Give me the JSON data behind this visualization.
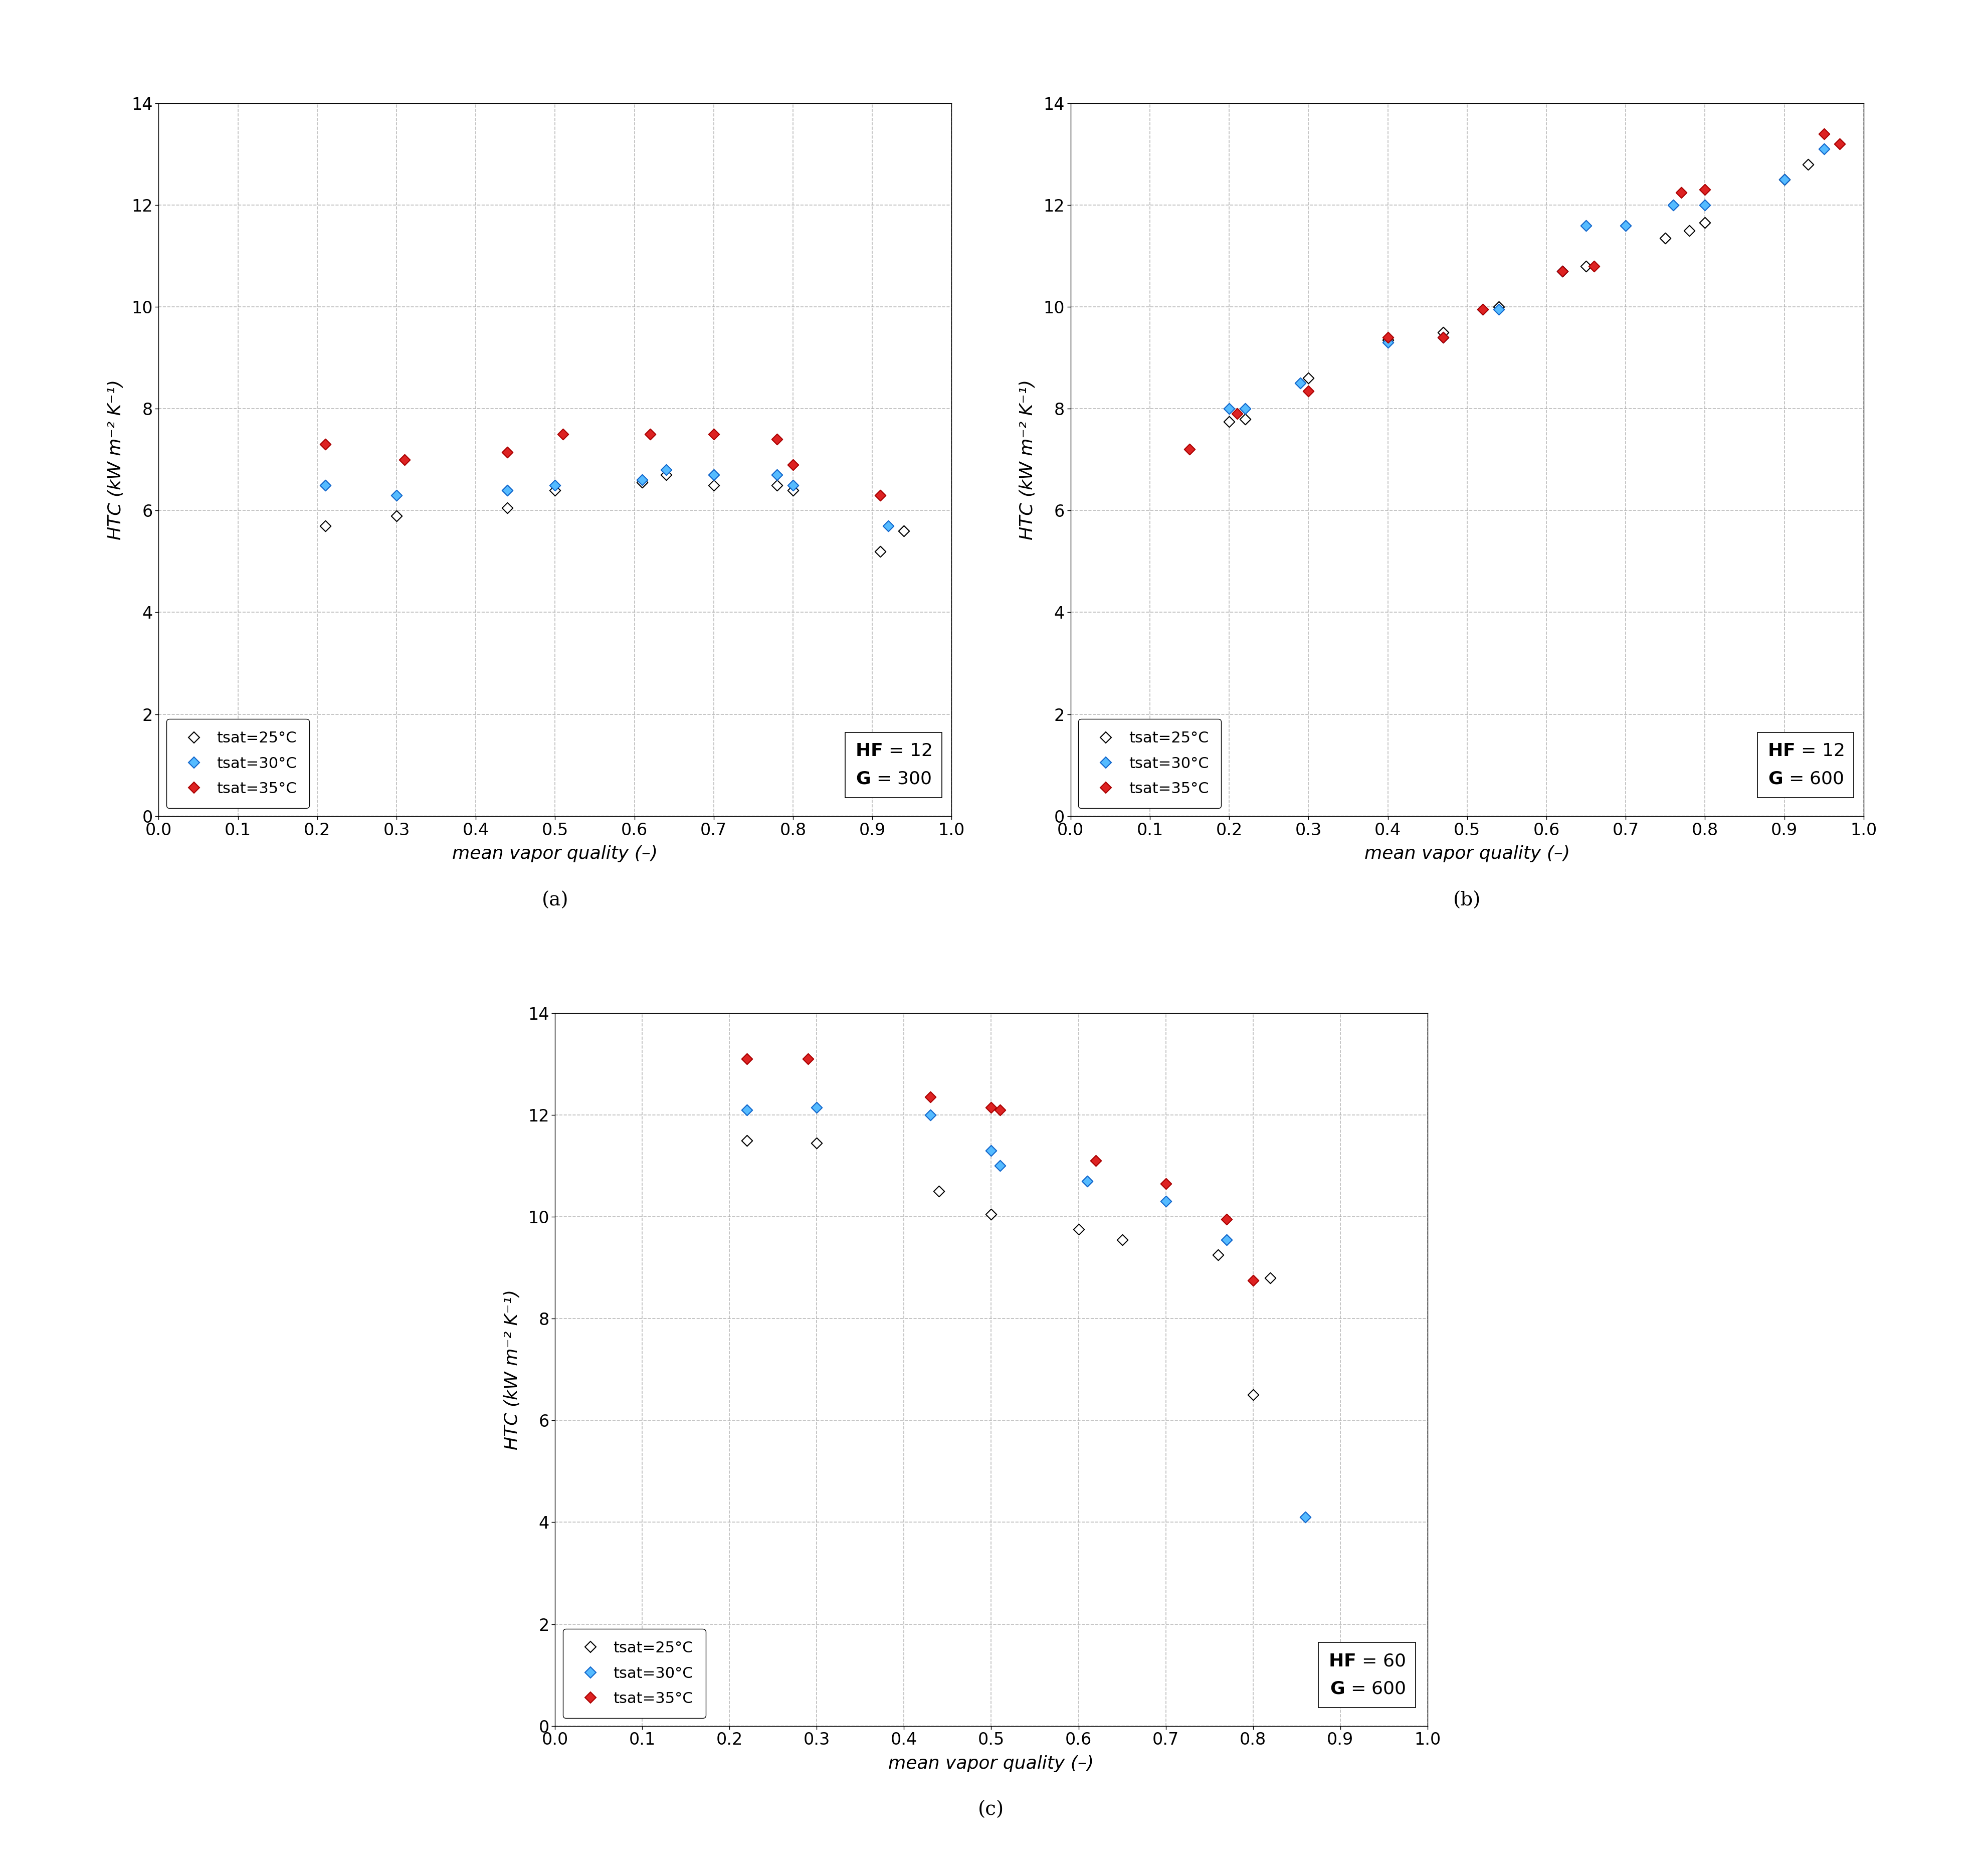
{
  "panel_a": {
    "annotation": "HF = 12\nG = 300",
    "white": {
      "x": [
        0.21,
        0.3,
        0.44,
        0.5,
        0.61,
        0.64,
        0.7,
        0.78,
        0.8,
        0.91,
        0.94
      ],
      "y": [
        5.7,
        5.9,
        6.05,
        6.4,
        6.55,
        6.7,
        6.5,
        6.5,
        6.4,
        5.2,
        5.6
      ]
    },
    "blue": {
      "x": [
        0.21,
        0.3,
        0.44,
        0.5,
        0.61,
        0.64,
        0.7,
        0.78,
        0.8,
        0.92
      ],
      "y": [
        6.5,
        6.3,
        6.4,
        6.5,
        6.6,
        6.8,
        6.7,
        6.7,
        6.5,
        5.7
      ]
    },
    "red": {
      "x": [
        0.21,
        0.31,
        0.44,
        0.51,
        0.62,
        0.7,
        0.78,
        0.8,
        0.91
      ],
      "y": [
        7.3,
        7.0,
        7.15,
        7.5,
        7.5,
        7.5,
        7.4,
        6.9,
        6.3
      ]
    }
  },
  "panel_b": {
    "annotation": "HF = 12\nG = 600",
    "white": {
      "x": [
        0.2,
        0.22,
        0.3,
        0.4,
        0.47,
        0.52,
        0.54,
        0.62,
        0.65,
        0.75,
        0.78,
        0.8,
        0.9,
        0.93
      ],
      "y": [
        7.75,
        7.8,
        8.6,
        9.35,
        9.5,
        9.95,
        10.0,
        10.7,
        10.8,
        11.35,
        11.5,
        11.65,
        12.5,
        12.8
      ]
    },
    "blue": {
      "x": [
        0.2,
        0.22,
        0.29,
        0.4,
        0.47,
        0.52,
        0.54,
        0.62,
        0.65,
        0.7,
        0.76,
        0.8,
        0.9,
        0.95
      ],
      "y": [
        8.0,
        8.0,
        8.5,
        9.3,
        9.4,
        9.95,
        9.95,
        10.7,
        11.6,
        11.6,
        12.0,
        12.0,
        12.5,
        13.1
      ]
    },
    "red": {
      "x": [
        0.15,
        0.21,
        0.3,
        0.4,
        0.47,
        0.52,
        0.62,
        0.66,
        0.77,
        0.8,
        0.95,
        0.97
      ],
      "y": [
        7.2,
        7.9,
        8.35,
        9.4,
        9.4,
        9.95,
        10.7,
        10.8,
        12.25,
        12.3,
        13.4,
        13.2
      ]
    }
  },
  "panel_c": {
    "annotation": "HF = 60\nG = 600",
    "white": {
      "x": [
        0.22,
        0.3,
        0.44,
        0.5,
        0.6,
        0.65,
        0.76,
        0.8,
        0.82
      ],
      "y": [
        11.5,
        11.45,
        10.5,
        10.05,
        9.75,
        9.55,
        9.25,
        6.5,
        8.8
      ]
    },
    "blue": {
      "x": [
        0.22,
        0.3,
        0.43,
        0.5,
        0.51,
        0.61,
        0.7,
        0.77,
        0.86
      ],
      "y": [
        12.1,
        12.15,
        12.0,
        11.3,
        11.0,
        10.7,
        10.3,
        9.55,
        4.1
      ]
    },
    "red": {
      "x": [
        0.22,
        0.29,
        0.43,
        0.5,
        0.51,
        0.62,
        0.7,
        0.77,
        0.8
      ],
      "y": [
        13.1,
        13.1,
        12.35,
        12.15,
        12.1,
        11.1,
        10.65,
        9.95,
        8.75
      ]
    }
  },
  "series": [
    {
      "key": "white",
      "fc": "#FFFFFF",
      "ec": "#000000",
      "label": "tsat=25°C"
    },
    {
      "key": "blue",
      "fc": "#55BBFF",
      "ec": "#1166CC",
      "label": "tsat=30°C"
    },
    {
      "key": "red",
      "fc": "#DD2222",
      "ec": "#AA0000",
      "label": "tsat=35°C"
    }
  ],
  "marker": "D",
  "markersize": 120,
  "markerlinewidth": 1.5,
  "xlabel": "mean vapor quality (–)",
  "ylabel": "HTC (kW m⁻² K⁻¹)",
  "xlim": [
    0,
    1
  ],
  "ylim": [
    0,
    14
  ],
  "xticks": [
    0,
    0.1,
    0.2,
    0.3,
    0.4,
    0.5,
    0.6,
    0.7,
    0.8,
    0.9,
    1.0
  ],
  "yticks": [
    0,
    2,
    4,
    6,
    8,
    10,
    12,
    14
  ],
  "subplot_labels": [
    "(a)",
    "(b)",
    "(c)"
  ],
  "background_color": "#FFFFFF",
  "grid_color": "#AAAAAA",
  "grid_style": "--",
  "grid_alpha": 0.8,
  "label_fontsize": 26,
  "tick_fontsize": 24,
  "legend_fontsize": 22,
  "sublabel_fontsize": 28,
  "annot_fontsize": 26
}
